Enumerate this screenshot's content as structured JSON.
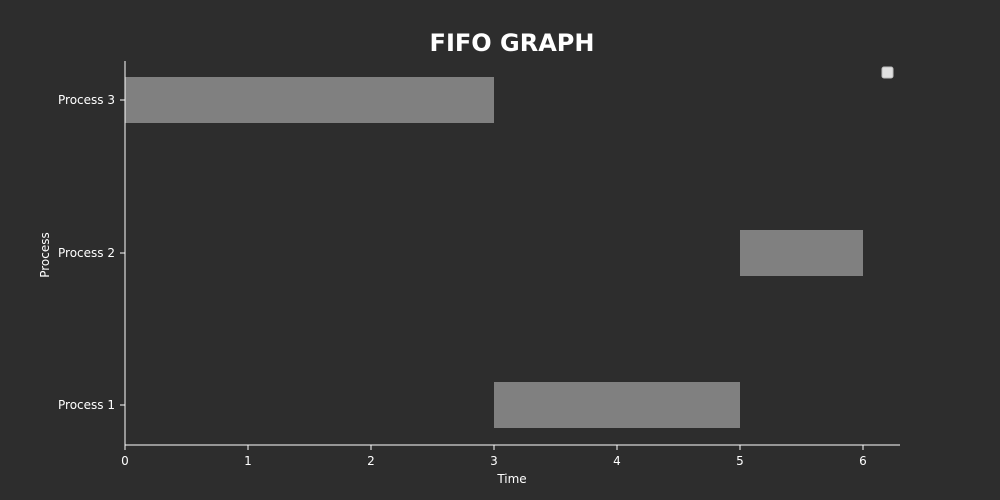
{
  "chart_data": {
    "type": "bar",
    "orientation": "horizontal",
    "title": "FIFO GRAPH",
    "xlabel": "Time",
    "ylabel": "Process",
    "categories": [
      "Process 1",
      "Process 2",
      "Process 3"
    ],
    "bars": [
      {
        "category": "Process 1",
        "start": 3,
        "end": 5
      },
      {
        "category": "Process 2",
        "start": 5,
        "end": 6
      },
      {
        "category": "Process 3",
        "start": 0,
        "end": 3
      }
    ],
    "xlim": [
      0,
      6.3
    ],
    "xticks": [
      0,
      1,
      2,
      3,
      4,
      5,
      6
    ],
    "grid": false,
    "legend": {
      "placement": "top-right",
      "entries": []
    },
    "colors": {
      "background": "#2d2d2d",
      "bar": "#808080",
      "axis": "#ffffff",
      "text": "#ffffff",
      "legend_box": "#e0e0e0"
    }
  }
}
